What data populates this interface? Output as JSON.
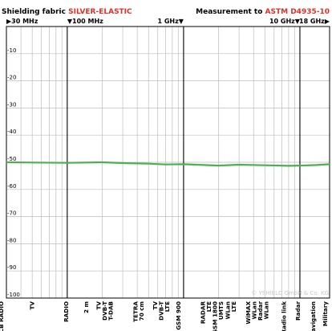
{
  "header": {
    "left_prefix": "Shielding fabric ",
    "left_product": "SILVER-ELASTIC",
    "right_prefix": "Measurement to ",
    "right_standard": "ASTM D4935-10"
  },
  "copyright": "© YSHIELD GmbH & Co. KG",
  "colors": {
    "accent": "#e0302a",
    "line": "#4caf50",
    "grid_minor": "#bdbdbd",
    "grid_major": "#000000"
  },
  "chart_data": {
    "type": "line",
    "title": "",
    "xlabel": "",
    "ylabel": "",
    "x_scale": "log",
    "x_range_mhz": [
      30,
      18000
    ],
    "ylim": [
      0,
      -100
    ],
    "y_ticks": [
      "-10",
      "-20",
      "-30",
      "-40",
      "-50",
      "-60",
      "-70",
      "-80",
      "-90",
      "-100"
    ],
    "y_tick_values": [
      -10,
      -20,
      -30,
      -40,
      -50,
      -60,
      -70,
      -80,
      -90,
      -100
    ],
    "freq_labels": [
      {
        "text": "30 MHz",
        "mhz": 30,
        "marker": "▶",
        "side": "left"
      },
      {
        "text": "100 MHz",
        "mhz": 100,
        "marker": "▼",
        "side": "left"
      },
      {
        "text": "1 GHz",
        "mhz": 1000,
        "marker": "▼",
        "side": "right"
      },
      {
        "text": "10 GHz",
        "mhz": 10000,
        "marker": "▼",
        "side": "right"
      },
      {
        "text": "18 GHz",
        "mhz": 18000,
        "marker": "▶",
        "side": "right"
      }
    ],
    "major_gridlines_mhz": [
      100,
      1000,
      10000
    ],
    "minor_gridlines_mhz": [
      40,
      50,
      60,
      70,
      80,
      90,
      200,
      300,
      400,
      500,
      600,
      700,
      800,
      900,
      2000,
      3000,
      4000,
      5000,
      6000,
      7000,
      8000,
      9000
    ],
    "bands": [
      {
        "lines": [
          "CB RADIO"
        ],
        "mhz": 27
      },
      {
        "lines": [
          "TV"
        ],
        "mhz": 50
      },
      {
        "lines": [
          "RADIO"
        ],
        "mhz": 98
      },
      {
        "lines": [
          "2 m"
        ],
        "mhz": 145
      },
      {
        "lines": [
          "TV",
          "DVB-T",
          "T-DAB"
        ],
        "mhz": 210
      },
      {
        "lines": [
          "TETRA",
          "70 cm"
        ],
        "mhz": 410
      },
      {
        "lines": [
          "TV",
          "DVB-T",
          "LTE"
        ],
        "mhz": 640
      },
      {
        "lines": [
          "GSM 900"
        ],
        "mhz": 900
      },
      {
        "lines": [
          "RADAR",
          "LTE",
          "GSM 1800"
        ],
        "mhz": 1650
      },
      {
        "lines": [
          "UMTS"
        ],
        "mhz": 2100
      },
      {
        "lines": [
          "WLan",
          "LTE"
        ],
        "mhz": 2550
      },
      {
        "lines": [
          "WiMAX",
          "WLan",
          "Radar",
          "WLan"
        ],
        "mhz": 4300
      },
      {
        "lines": [
          "Radio link"
        ],
        "mhz": 7300
      },
      {
        "lines": [
          "Radar"
        ],
        "mhz": 9600
      },
      {
        "lines": [
          "Navigation"
        ],
        "mhz": 13000
      },
      {
        "lines": [
          "Military"
        ],
        "mhz": 16500
      }
    ],
    "series": [
      {
        "color": "#4caf50",
        "x": [
          30,
          50,
          100,
          200,
          300,
          500,
          700,
          1000,
          1500,
          2000,
          3000,
          5000,
          8000,
          10000,
          14000,
          18000
        ],
        "values": [
          -50.0,
          -50.1,
          -50.2,
          -50.0,
          -50.3,
          -50.5,
          -50.8,
          -50.7,
          -51.0,
          -51.2,
          -50.9,
          -51.1,
          -51.3,
          -51.2,
          -51.0,
          -50.7
        ]
      }
    ]
  }
}
